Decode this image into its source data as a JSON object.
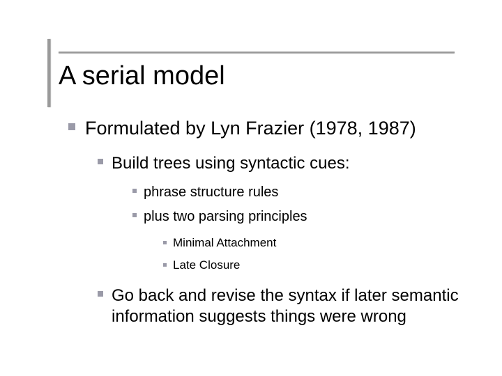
{
  "colors": {
    "background": "#ffffff",
    "text": "#000000",
    "bullet": "#9a9aa8",
    "rule": "#9a9a9a"
  },
  "typography": {
    "family": "Arial",
    "title_size_pt": 38,
    "level1_size_pt": 27,
    "level2_size_pt": 24,
    "level3_size_pt": 20,
    "level4_size_pt": 17
  },
  "title": "A serial model",
  "bullets": {
    "l1_0": "Formulated by Lyn Frazier (1978, 1987)",
    "l2_0": "Build trees using syntactic cues:",
    "l3_0": "phrase structure rules",
    "l3_1": "plus two parsing principles",
    "l4_0": "Minimal Attachment",
    "l4_1": "Late Closure",
    "l2_1": "Go back and revise the syntax if later semantic information suggests things were wrong"
  }
}
